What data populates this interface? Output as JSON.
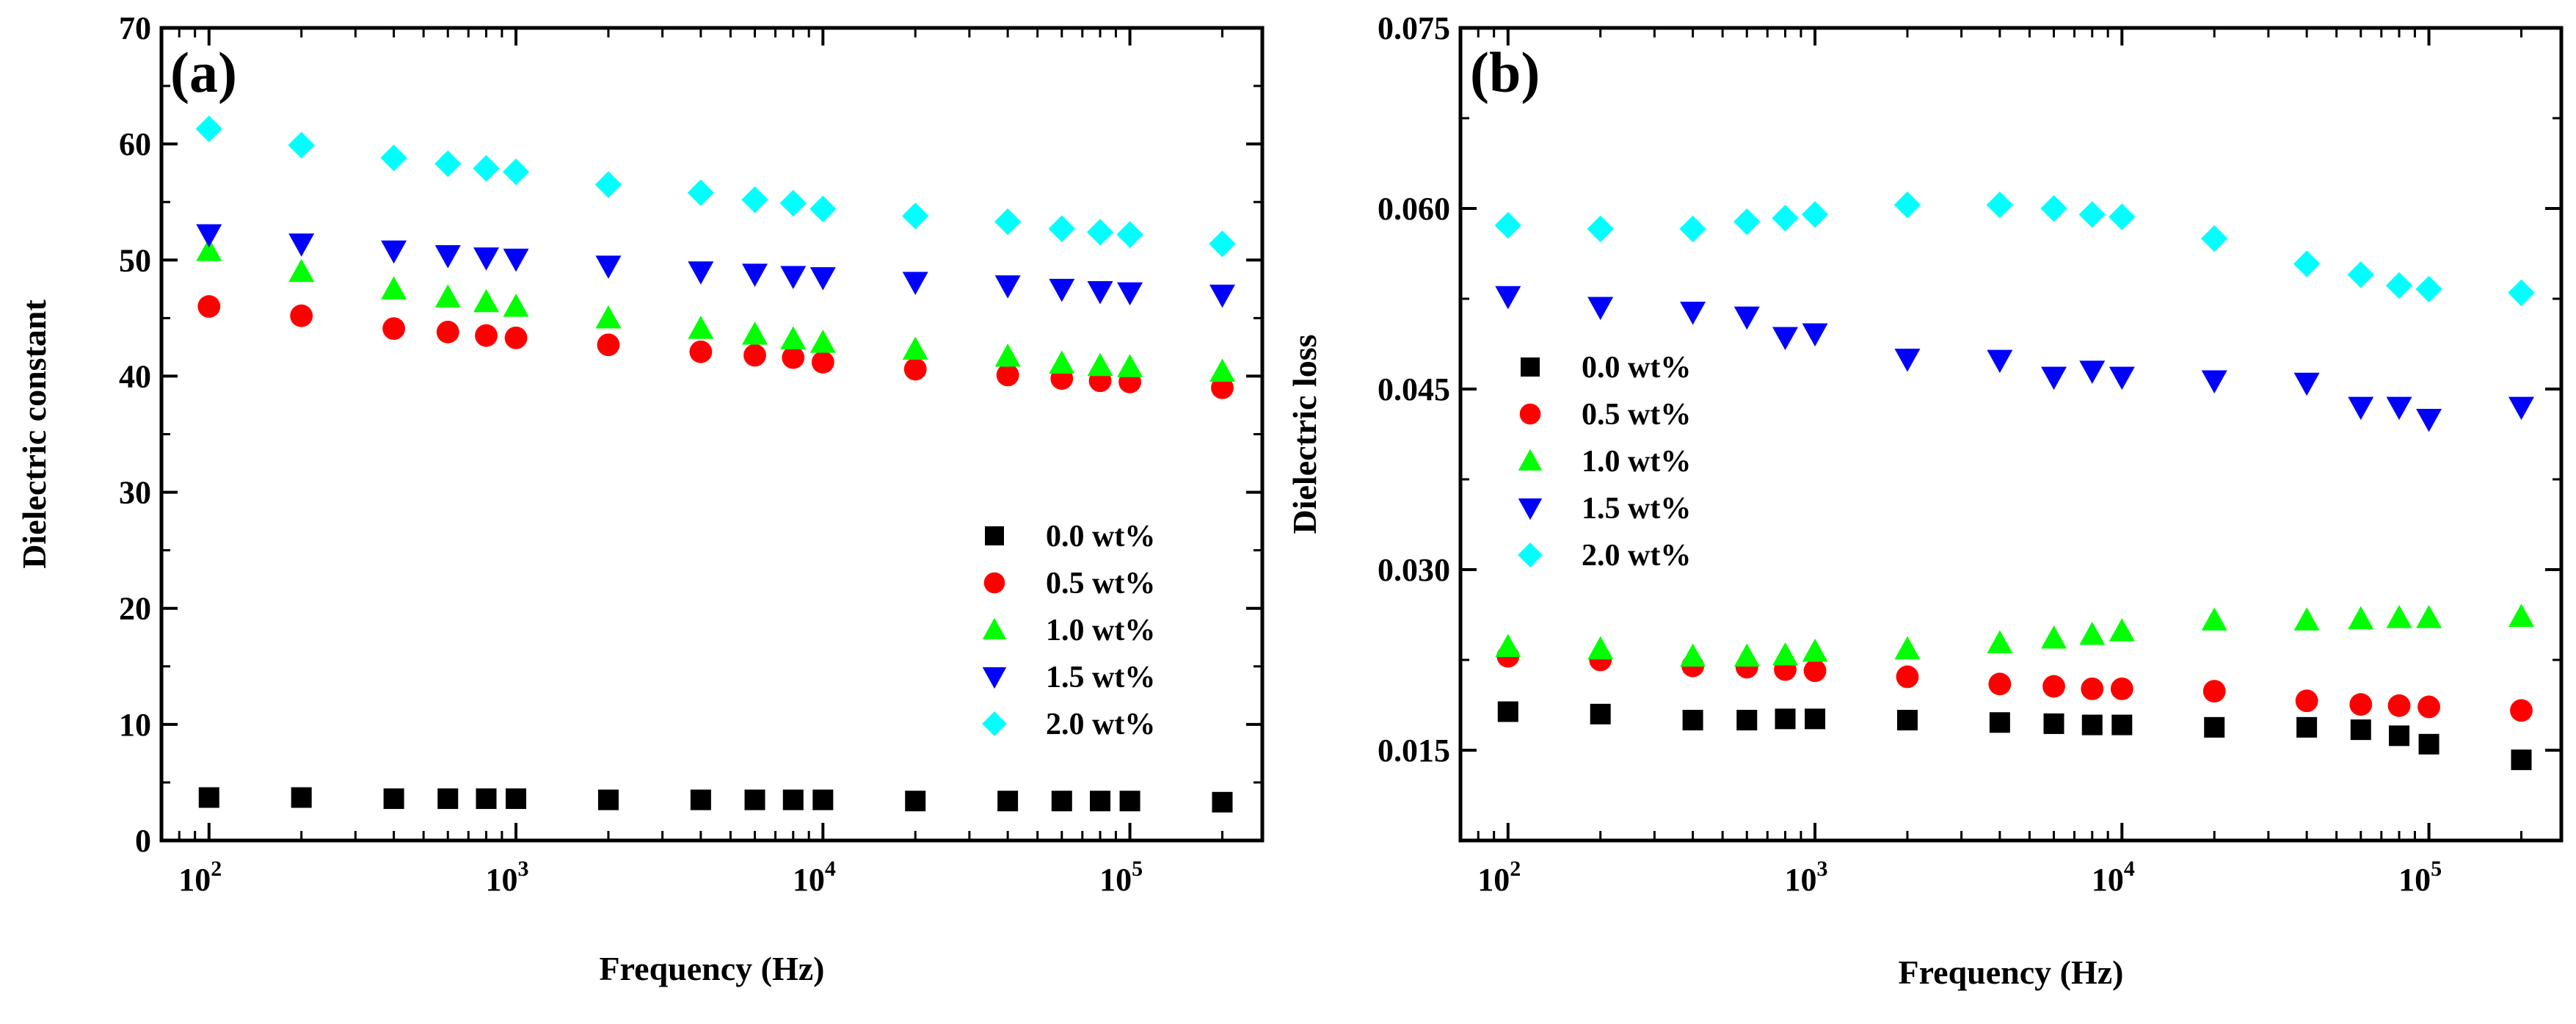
{
  "chart_data": [
    {
      "type": "scatter",
      "panel_label": "(a)",
      "xlabel": "Frequency (Hz)",
      "ylabel": "Dielectric  constant",
      "xscale": "log",
      "xlim": [
        70,
        270000
      ],
      "ylim": [
        0,
        70
      ],
      "yticks": [
        "0",
        "10",
        "20",
        "30",
        "40",
        "50",
        "60",
        "70"
      ],
      "xticks": [
        {
          "base": "10",
          "exp": "2",
          "value": 100
        },
        {
          "base": "10",
          "exp": "3",
          "value": 1000
        },
        {
          "base": "10",
          "exp": "4",
          "value": 10000
        },
        {
          "base": "10",
          "exp": "5",
          "value": 100000
        }
      ],
      "legend_position": "lower-right",
      "x": [
        100,
        200,
        400,
        600,
        800,
        1000,
        2000,
        4000,
        6000,
        8000,
        10000,
        20000,
        40000,
        60000,
        80000,
        100000,
        200000
      ],
      "series": [
        {
          "name": "0.0 wt%",
          "marker": "square",
          "color": "#000000",
          "values": [
            3.7,
            3.7,
            3.6,
            3.6,
            3.6,
            3.6,
            3.5,
            3.5,
            3.5,
            3.5,
            3.5,
            3.4,
            3.4,
            3.4,
            3.4,
            3.4,
            3.3
          ]
        },
        {
          "name": "0.5 wt%",
          "marker": "circle",
          "color": "#ff0000",
          "values": [
            46.0,
            45.2,
            44.1,
            43.8,
            43.5,
            43.3,
            42.7,
            42.1,
            41.8,
            41.6,
            41.2,
            40.6,
            40.1,
            39.8,
            39.6,
            39.5,
            39.0
          ]
        },
        {
          "name": "1.0 wt%",
          "marker": "triangle-up",
          "color": "#00ff00",
          "values": [
            50.8,
            49.0,
            47.5,
            46.8,
            46.4,
            46.0,
            45.0,
            44.1,
            43.6,
            43.2,
            42.9,
            42.3,
            41.7,
            41.1,
            40.9,
            40.8,
            40.4
          ]
        },
        {
          "name": "1.5 wt%",
          "marker": "triangle-down",
          "color": "#0000ff",
          "values": [
            52.2,
            51.4,
            50.8,
            50.4,
            50.2,
            50.1,
            49.5,
            49.0,
            48.8,
            48.6,
            48.5,
            48.1,
            47.8,
            47.5,
            47.3,
            47.2,
            47.0
          ]
        },
        {
          "name": "2.0 wt%",
          "marker": "diamond",
          "color": "#00ffff",
          "values": [
            61.3,
            59.9,
            58.8,
            58.3,
            57.9,
            57.6,
            56.5,
            55.8,
            55.2,
            54.9,
            54.4,
            53.8,
            53.3,
            52.7,
            52.4,
            52.2,
            51.4
          ]
        }
      ]
    },
    {
      "type": "scatter",
      "panel_label": "(b)",
      "xlabel": "Frequency (Hz)",
      "ylabel": "Dielectric loss",
      "xscale": "log",
      "xlim": [
        70,
        270000
      ],
      "ylim": [
        0.0075,
        0.075
      ],
      "yticks": [
        "0.015",
        "0.030",
        "0.045",
        "0.060",
        "0.075"
      ],
      "ytick_values": [
        0.015,
        0.03,
        0.045,
        0.06,
        0.075
      ],
      "xticks": [
        {
          "base": "10",
          "exp": "2",
          "value": 100
        },
        {
          "base": "10",
          "exp": "3",
          "value": 1000
        },
        {
          "base": "10",
          "exp": "4",
          "value": 10000
        },
        {
          "base": "10",
          "exp": "5",
          "value": 100000
        }
      ],
      "legend_position": "center-left",
      "x": [
        100,
        200,
        400,
        600,
        800,
        1000,
        2000,
        4000,
        6000,
        8000,
        10000,
        20000,
        40000,
        60000,
        80000,
        100000,
        200000
      ],
      "series": [
        {
          "name": "0.0 wt%",
          "marker": "square",
          "color": "#000000",
          "values": [
            0.0182,
            0.018,
            0.0175,
            0.0175,
            0.0176,
            0.0176,
            0.0175,
            0.0173,
            0.0172,
            0.0171,
            0.0171,
            0.0169,
            0.0169,
            0.0167,
            0.0162,
            0.0155,
            0.0142
          ]
        },
        {
          "name": "0.5 wt%",
          "marker": "circle",
          "color": "#ff0000",
          "values": [
            0.0228,
            0.0225,
            0.022,
            0.0219,
            0.0217,
            0.0216,
            0.0211,
            0.0205,
            0.0203,
            0.0201,
            0.0201,
            0.0199,
            0.0191,
            0.0188,
            0.0187,
            0.0186,
            0.0183
          ]
        },
        {
          "name": "1.0 wt%",
          "marker": "triangle-up",
          "color": "#00ff00",
          "values": [
            0.0236,
            0.0234,
            0.0228,
            0.0228,
            0.0229,
            0.0232,
            0.0234,
            0.0239,
            0.0243,
            0.0246,
            0.0249,
            0.0258,
            0.0258,
            0.0259,
            0.026,
            0.026,
            0.0261
          ]
        },
        {
          "name": "1.5 wt%",
          "marker": "triangle-down",
          "color": "#0000ff",
          "values": [
            0.0527,
            0.0518,
            0.0514,
            0.051,
            0.0493,
            0.0496,
            0.0475,
            0.0474,
            0.046,
            0.0465,
            0.046,
            0.0457,
            0.0455,
            0.0435,
            0.0435,
            0.0425,
            0.0435
          ]
        },
        {
          "name": "2.0 wt%",
          "marker": "diamond",
          "color": "#00ffff",
          "values": [
            0.0586,
            0.0583,
            0.0583,
            0.0589,
            0.0592,
            0.0595,
            0.0603,
            0.0603,
            0.06,
            0.0595,
            0.0593,
            0.0575,
            0.0554,
            0.0545,
            0.0536,
            0.0533,
            0.053
          ]
        }
      ]
    }
  ]
}
